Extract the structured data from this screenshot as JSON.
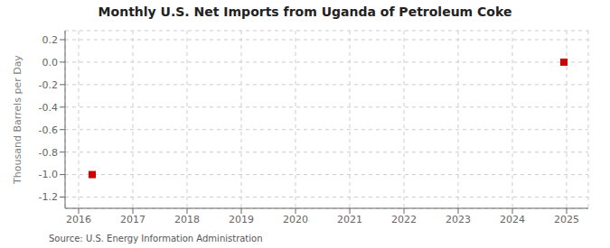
{
  "chart_data": {
    "type": "scatter",
    "title": "Monthly U.S. Net Imports from Uganda of Petroleum Coke",
    "y_label": "Thousand Barrels per Day",
    "annotation": "Source: U.S. Energy Information Administration",
    "x": [
      2016.25,
      2024.95
    ],
    "values": [
      -1.0,
      0.0
    ],
    "color": "#cc0000",
    "marker": "square",
    "xlim": [
      2015.75,
      2025.4
    ],
    "ylim": [
      -1.3,
      0.28
    ],
    "xticks": [
      2016,
      2017,
      2018,
      2019,
      2020,
      2021,
      2022,
      2023,
      2024,
      2025
    ],
    "yticks": [
      0.2,
      {
        "value": 0.0,
        "label": "0.0"
      },
      -0.2,
      -0.4,
      -0.6,
      -0.8,
      {
        "value": -1.0,
        "label": "-1.0"
      },
      -1.2
    ],
    "grid": true
  }
}
